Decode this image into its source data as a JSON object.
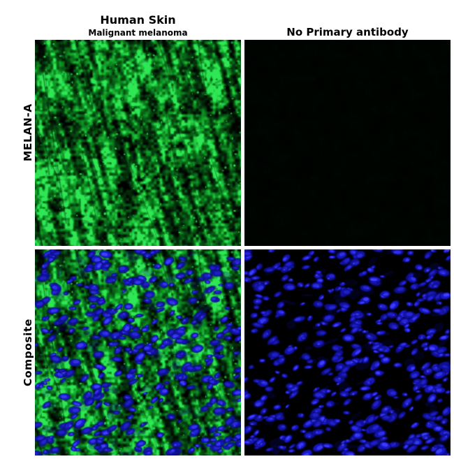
{
  "figure": {
    "columns": [
      {
        "title": "Human Skin",
        "subtitle": "Malignant melanoma"
      },
      {
        "title": "No Primary antibody",
        "subtitle": ""
      }
    ],
    "rows": [
      {
        "label": "MELAN-A"
      },
      {
        "label": "Composite"
      }
    ],
    "panels": [
      {
        "id": "melan-a-human-skin",
        "row": "MELAN-A",
        "column": "Human Skin",
        "texture": "tissue-green",
        "description": "Green MELAN-A immunofluorescence staining of malignant melanoma tissue"
      },
      {
        "id": "melan-a-no-primary",
        "row": "MELAN-A",
        "column": "No Primary antibody",
        "texture": "blank-dark",
        "description": "Near-black negative control with no green signal"
      },
      {
        "id": "composite-human-skin",
        "row": "Composite",
        "column": "Human Skin",
        "texture": "tissue-green-blue",
        "description": "Green MELAN-A staining merged with blue nuclear counterstain"
      },
      {
        "id": "composite-no-primary",
        "row": "Composite",
        "column": "No Primary antibody",
        "texture": "nuclei-blue",
        "description": "Blue nuclear counterstain only on black background"
      }
    ]
  },
  "colors": {
    "page_bg": "#ffffff",
    "panel_bg": "#000000",
    "text": "#000000",
    "green_bright": "#2fe655",
    "green_mid": "#0d9222",
    "blue_bright": "#4343ff",
    "blue_mid": "#1b1bd8",
    "blue_dark": "#0a0a78"
  }
}
